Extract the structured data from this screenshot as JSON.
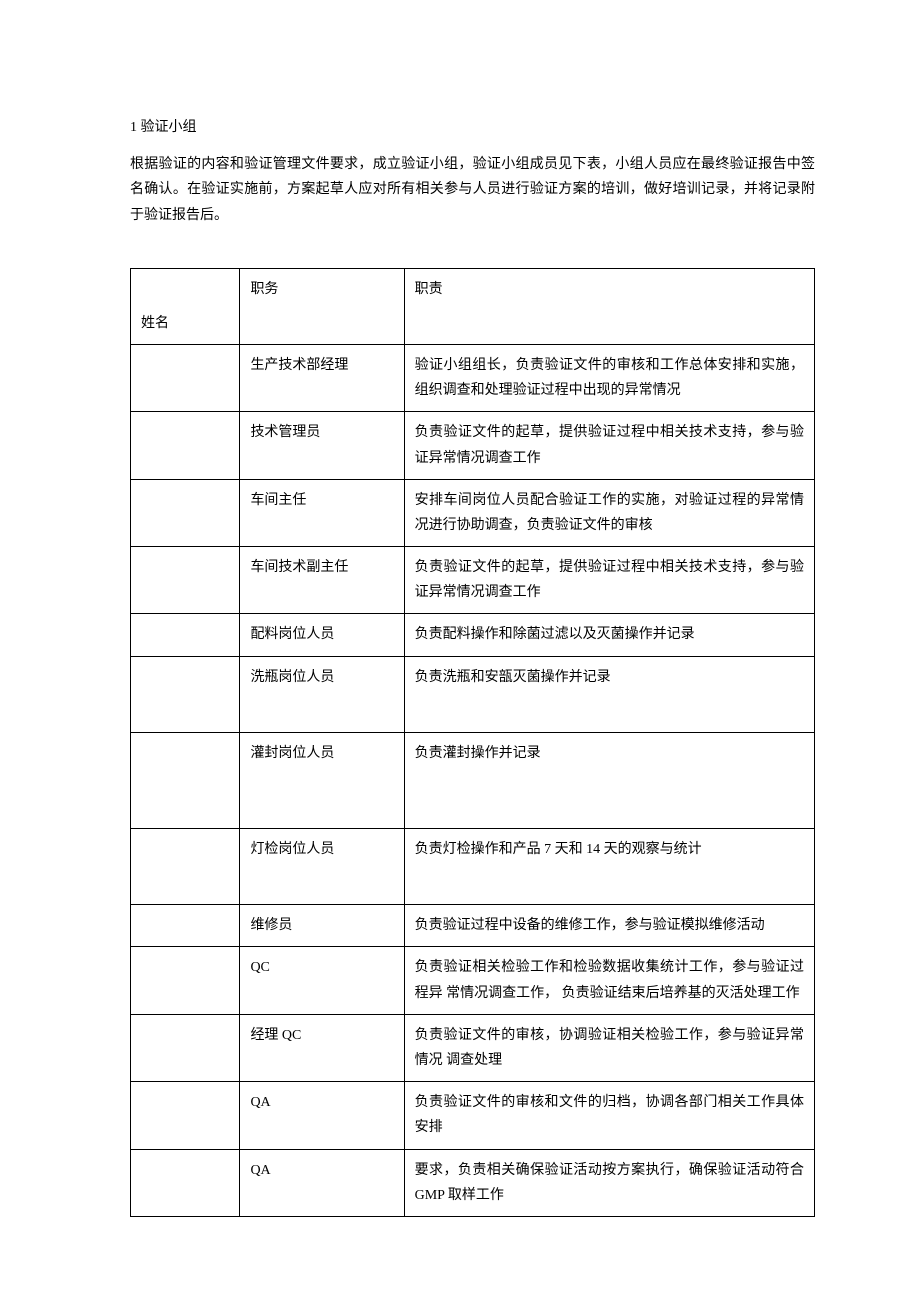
{
  "doc": {
    "heading": "1 验证小组",
    "intro": "根据验证的内容和验证管理文件要求，成立验证小组，验证小组成员见下表，小组人员应在最终验证报告中签名确认。在验证实施前，方案起草人应对所有相关参与人员进行验证方案的培训，做好培训记录，并将记录附于验证报告后。"
  },
  "table": {
    "header_role": "职务",
    "header_duty": "职责",
    "header_name": "姓名",
    "rows": [
      {
        "role": "生产技术部经理",
        "duty": "验证小组组长，负责验证文件的审核和工作总体安排和实施，组织调查和处理验证过程中出现的异常情况"
      },
      {
        "role": "技术管理员",
        "duty": "负责验证文件的起草，提供验证过程中相关技术支持，参与验证异常情况调查工作"
      },
      {
        "role": "车间主任",
        "duty": "安排车间岗位人员配合验证工作的实施，对验证过程的异常情况进行协助调查，负责验证文件的审核"
      },
      {
        "role": "车间技术副主任",
        "duty": "负责验证文件的起草，提供验证过程中相关技术支持，参与验证异常情况调查工作"
      },
      {
        "role": "配料岗位人员",
        "duty": "负责配料操作和除菌过滤以及灭菌操作并记录"
      },
      {
        "role": "洗瓶岗位人员",
        "duty": "负责洗瓶和安瓿灭菌操作并记录"
      },
      {
        "role": "灌封岗位人员",
        "duty": "负责灌封操作并记录"
      },
      {
        "role": "灯检岗位人员",
        "duty": "负责灯检操作和产品 7 天和 14 天的观察与统计"
      },
      {
        "role": "维修员",
        "duty": " 负责验证过程中设备的维修工作，参与验证模拟维修活动"
      },
      {
        "role": "QC",
        "duty": "负责验证相关检验工作和检验数据收集统计工作，参与验证过程异 常情况调查工作， 负责验证结束后培养基的灭活处理工作"
      },
      {
        "role": "经理 QC",
        "duty": "负责验证文件的审核，协调验证相关检验工作，参与验证异常情况 调查处理"
      },
      {
        "role": "QA",
        "duty": " 负责验证文件的审核和文件的归档，协调各部门相关工作具体安排"
      },
      {
        "role": "QA",
        "duty": "要求，负责相关确保验证活动按方案执行，确保验证活动符合 GMP  取样工作"
      }
    ]
  }
}
